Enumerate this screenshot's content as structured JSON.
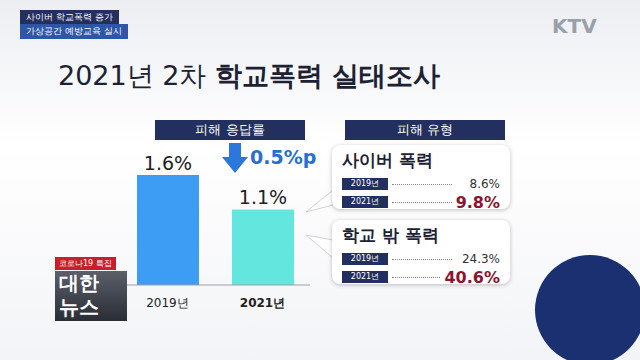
{
  "header": {
    "banner": [
      "사이버 학교폭력 증가",
      "가상공간 예방교육 실시"
    ],
    "channel": "KTV",
    "title": [
      "2021년 2차",
      "학교폭력 실태조사"
    ]
  },
  "chart_data": {
    "type": "bar",
    "title": "피해 응답률",
    "categories": [
      "2019년",
      "2021년"
    ],
    "values": [
      1.6,
      1.1
    ],
    "value_labels": [
      "1.6%",
      "1.1%"
    ],
    "colors": [
      "#3d9cf3",
      "#62e6dd"
    ],
    "ylim": [
      0,
      2.4
    ],
    "data_labels": true,
    "tick_labels": "x",
    "annotations": [
      "0.5%p"
    ]
  },
  "damage_types": {
    "title": "피해 유형",
    "panels": [
      {
        "name": "사이버 폭력",
        "rows": [
          [
            "2019년",
            "8.6%"
          ],
          [
            "2021년",
            "9.8%"
          ]
        ]
      },
      {
        "name": "학교 밖 폭력",
        "rows": [
          [
            "2019년",
            "24.3%"
          ],
          [
            "2021년",
            "40.6%"
          ]
        ]
      }
    ]
  },
  "logo": {
    "badge": "코로나19 특집",
    "lines": [
      "대한",
      "뉴스"
    ]
  }
}
